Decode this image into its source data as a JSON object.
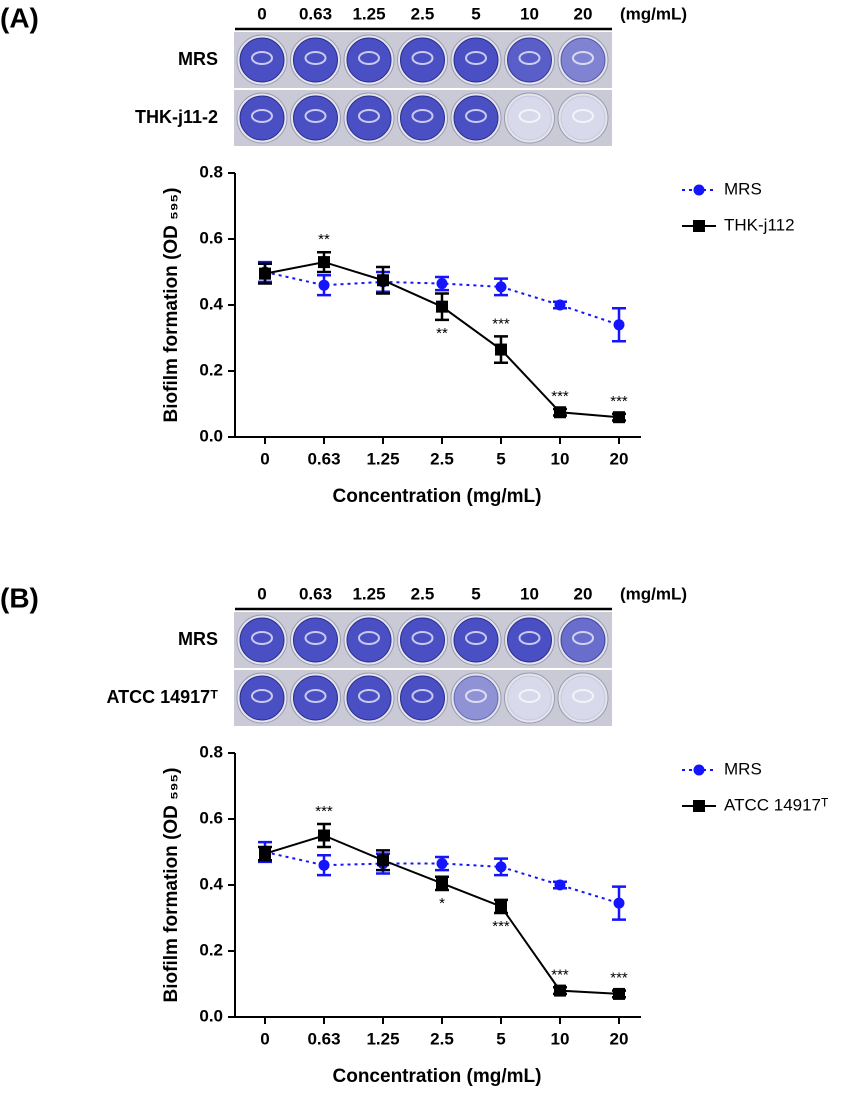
{
  "chart_data": [
    {
      "type": "line",
      "panel_label": "(A)",
      "plate": {
        "columns": [
          "0",
          "0.63",
          "1.25",
          "2.5",
          "5",
          "10",
          "20"
        ],
        "unit": "(mg/mL)",
        "rows": [
          "MRS",
          "THK-j11-2"
        ]
      },
      "xlabel": "Concentration (mg/mL)",
      "ylabel": "Biofilm formation (OD ₅₉₅)",
      "categories": [
        "0",
        "0.63",
        "1.25",
        "2.5",
        "5",
        "10",
        "20"
      ],
      "ylim": [
        0,
        0.8
      ],
      "yticks": [
        {
          "value": 0,
          "label": "0.0"
        },
        0.2,
        0.4,
        0.6,
        0.8
      ],
      "series": [
        {
          "name": "MRS",
          "color": "#1414ff",
          "style": "dotted",
          "marker": "circle",
          "values": [
            0.5,
            0.46,
            0.47,
            0.465,
            0.455,
            0.4,
            0.34
          ],
          "errors": [
            0.03,
            0.03,
            0.03,
            0.02,
            0.025,
            0.01,
            0.05
          ]
        },
        {
          "name": "THK-j112",
          "color": "#000000",
          "style": "solid",
          "marker": "square",
          "values": [
            0.495,
            0.53,
            0.475,
            0.395,
            0.265,
            0.075,
            0.06
          ],
          "errors": [
            0.03,
            0.03,
            0.04,
            0.04,
            0.04,
            0.01,
            0.01
          ],
          "significance": [
            null,
            "**",
            null,
            "**",
            "***",
            "***",
            "***"
          ]
        }
      ]
    },
    {
      "type": "line",
      "panel_label": "(B)",
      "plate": {
        "columns": [
          "0",
          "0.63",
          "1.25",
          "2.5",
          "5",
          "10",
          "20"
        ],
        "unit": "(mg/mL)",
        "rows": [
          "MRS",
          "ATCC 14917ᵀ"
        ]
      },
      "xlabel": "Concentration (mg/mL)",
      "ylabel": "Biofilm formation (OD ₅₉₅)",
      "categories": [
        "0",
        "0.63",
        "1.25",
        "2.5",
        "5",
        "10",
        "20"
      ],
      "ylim": [
        0,
        0.8
      ],
      "yticks": [
        {
          "value": 0,
          "label": "0.0"
        },
        0.2,
        0.4,
        0.6,
        0.8
      ],
      "series": [
        {
          "name": "MRS",
          "color": "#1414ff",
          "style": "dotted",
          "marker": "circle",
          "values": [
            0.5,
            0.46,
            0.465,
            0.465,
            0.455,
            0.4,
            0.345
          ],
          "errors": [
            0.03,
            0.03,
            0.03,
            0.02,
            0.025,
            0.01,
            0.05
          ]
        },
        {
          "name": "ATCC 14917ᵀ",
          "color": "#000000",
          "style": "solid",
          "marker": "square",
          "values": [
            0.495,
            0.55,
            0.475,
            0.405,
            0.335,
            0.08,
            0.07
          ],
          "errors": [
            0.02,
            0.035,
            0.03,
            0.02,
            0.02,
            0.01,
            0.01
          ],
          "significance": [
            null,
            "***",
            null,
            "*",
            "***",
            "***",
            "***"
          ]
        }
      ]
    }
  ]
}
